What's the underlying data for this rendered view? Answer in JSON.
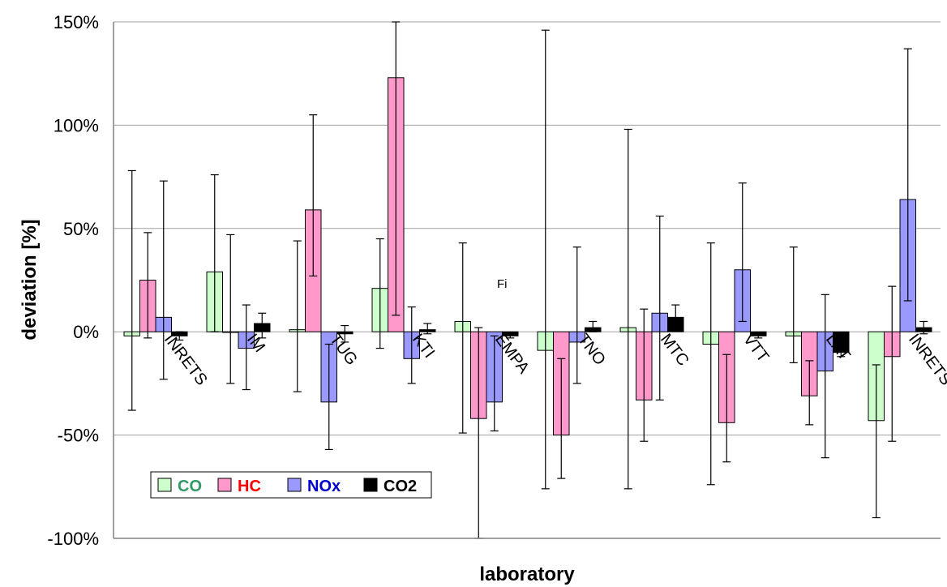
{
  "chart_data": {
    "type": "bar",
    "title": "",
    "xlabel": "laboratory",
    "ylabel": "deviation [%]",
    "ylim": [
      -100,
      150
    ],
    "y_ticks": [
      "150%",
      "100%",
      "50%",
      "0%",
      "-50%",
      "-100%"
    ],
    "y_tick_values": [
      150,
      100,
      50,
      0,
      -50,
      -100
    ],
    "grid": true,
    "legend_position": "bottom-left",
    "categories": [
      "INRETS",
      "IM",
      "TUG",
      "KTI",
      "EMPA",
      "TNO",
      "MTC",
      "VTT",
      "LAT",
      "INRETS"
    ],
    "series": [
      {
        "name": "CO",
        "color": "#ccffcc",
        "legend_text_color": "#339966",
        "values": [
          -2,
          29,
          1,
          21,
          5,
          -9,
          2,
          -6,
          -2,
          -43
        ],
        "error_low": [
          -38,
          0,
          -29,
          -8,
          -49,
          -76,
          -76,
          -74,
          -15,
          -90
        ],
        "error_high": [
          78,
          76,
          44,
          45,
          43,
          146,
          98,
          43,
          41,
          -16
        ]
      },
      {
        "name": "HC",
        "color": "#ff99cc",
        "legend_text_color": "#ff0000",
        "values": [
          25,
          0,
          59,
          123,
          -42,
          -50,
          -33,
          -44,
          -31,
          -12
        ],
        "error_low": [
          -3,
          -25,
          27,
          8,
          -100,
          -71,
          -53,
          -63,
          -45,
          -53
        ],
        "error_high": [
          48,
          47,
          105,
          150,
          2,
          -13,
          11,
          -11,
          -14,
          22
        ]
      },
      {
        "name": "NOx",
        "color": "#9999ff",
        "legend_text_color": "#0000cc",
        "values": [
          7,
          -8,
          -34,
          -13,
          -34,
          -5,
          9,
          30,
          -19,
          64
        ],
        "error_low": [
          -23,
          -28,
          -57,
          -25,
          -48,
          -25,
          -33,
          5,
          -61,
          15
        ],
        "error_high": [
          73,
          13,
          -6,
          12,
          -2,
          41,
          56,
          72,
          18,
          137
        ]
      },
      {
        "name": "CO2",
        "color": "#000000",
        "legend_text_color": "#000000",
        "values": [
          -2,
          4,
          -1,
          1,
          -2,
          2,
          7,
          -2,
          -10,
          2
        ],
        "error_low": [
          -4,
          -3,
          -5,
          -1,
          -3,
          0,
          1,
          -3,
          -12,
          -1
        ],
        "error_high": [
          0,
          9,
          3,
          4,
          -1,
          5,
          13,
          -1,
          -8,
          5
        ]
      }
    ],
    "annotations": [
      "Fi"
    ]
  }
}
